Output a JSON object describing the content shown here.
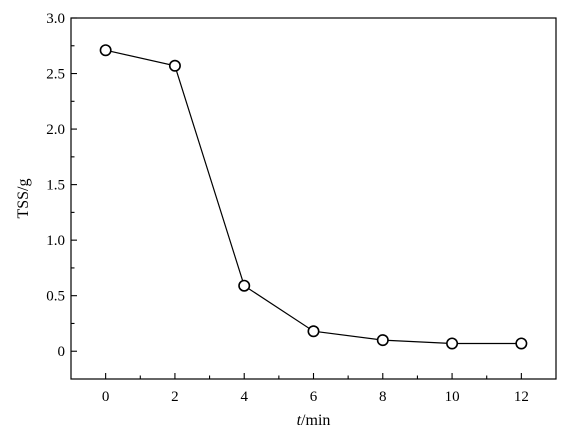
{
  "chart_data": {
    "type": "line",
    "title": "",
    "xlabel_italic": "t",
    "xlabel_rest": "/min",
    "ylabel": "TSS/g",
    "xlim": [
      -1,
      13
    ],
    "ylim": [
      -0.25,
      3.0
    ],
    "xticks": [
      0,
      2,
      4,
      6,
      8,
      10,
      12
    ],
    "xtick_labels": [
      "0",
      "2",
      "4",
      "6",
      "8",
      "10",
      "12"
    ],
    "yticks": [
      0,
      0.5,
      1.0,
      1.5,
      2.0,
      2.5,
      3.0
    ],
    "ytick_labels": [
      "0",
      "0.5",
      "1.0",
      "1.5",
      "2.0",
      "2.5",
      "3.0"
    ],
    "grid": false,
    "legend": "none",
    "x": [
      0,
      2,
      4,
      6,
      8,
      10,
      12
    ],
    "series": [
      {
        "values": [
          2.71,
          2.57,
          0.59,
          0.18,
          0.1,
          0.07,
          0.07
        ]
      }
    ]
  }
}
